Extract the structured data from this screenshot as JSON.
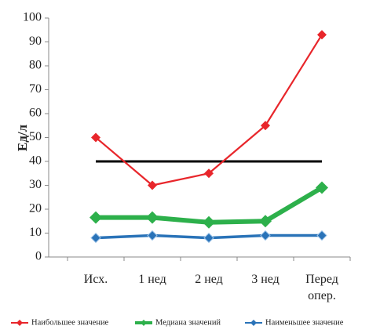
{
  "chart_data": {
    "type": "line",
    "y_label": "Ед/л",
    "categories": [
      "Исх.",
      "1 нед",
      "2 нед",
      "3 нед",
      "Перед опер."
    ],
    "series": [
      {
        "name": "Наибольшее значение",
        "color": "#e8262b",
        "values": [
          50,
          30,
          35,
          55,
          93
        ]
      },
      {
        "name": "Медиана значений",
        "color": "#2db04b",
        "values": [
          16.5,
          16.5,
          14.5,
          15,
          29
        ]
      },
      {
        "name": "Наименьшее значение",
        "color": "#2a73b8",
        "values": [
          8,
          9,
          8,
          9,
          9
        ]
      }
    ],
    "reference_line": {
      "value": 40,
      "color": "#000000"
    },
    "ylim": [
      0,
      100
    ],
    "yticks": [
      0,
      10,
      20,
      30,
      40,
      50,
      60,
      70,
      80,
      90,
      100
    ],
    "grid": false,
    "legend": "bottom"
  }
}
